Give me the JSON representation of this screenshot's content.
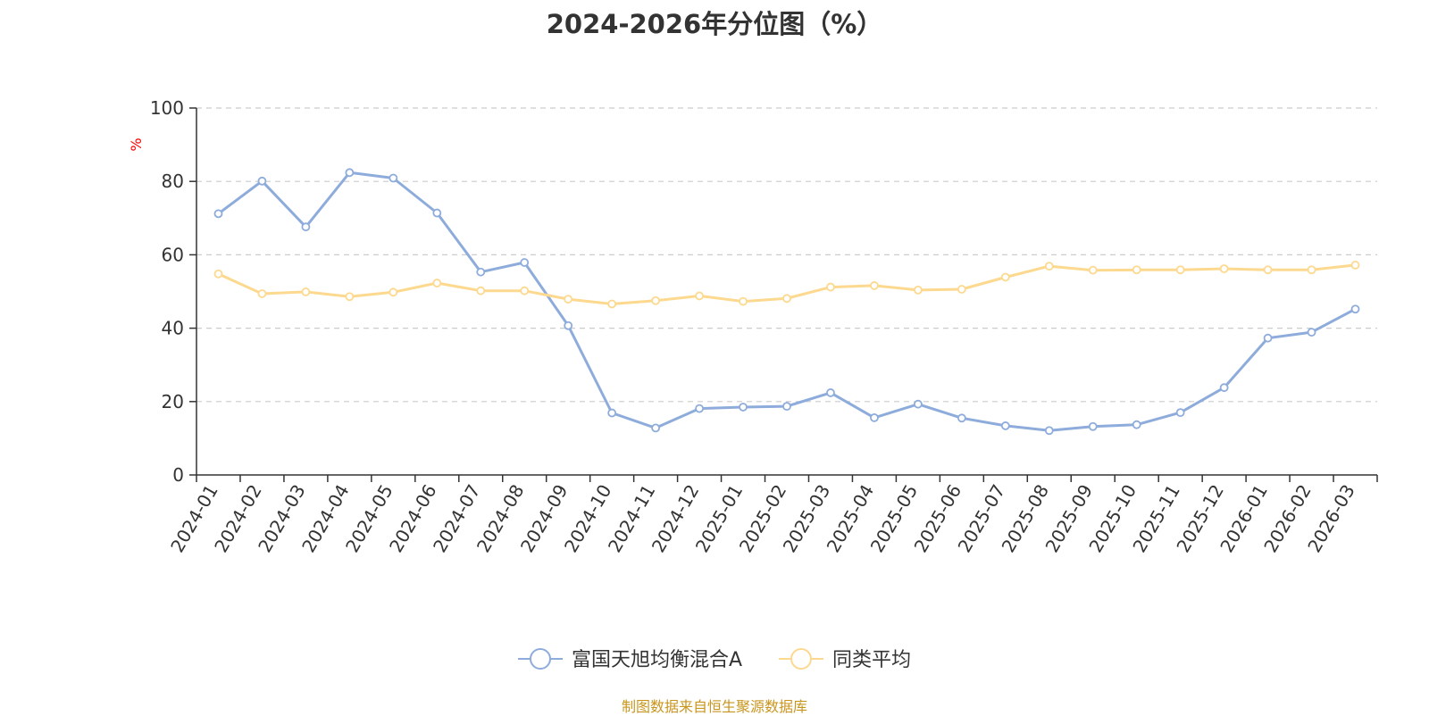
{
  "chart_data": {
    "type": "line",
    "title": "2024-2026年分位图（%）",
    "ylabel": "%",
    "ylim": [
      0,
      100
    ],
    "yticks": [
      0,
      20,
      40,
      60,
      80,
      100
    ],
    "grid": true,
    "legend_position": "bottom",
    "categories": [
      "2024-01",
      "2024-02",
      "2024-03",
      "2024-04",
      "2024-05",
      "2024-06",
      "2024-07",
      "2024-08",
      "2024-09",
      "2024-10",
      "2024-11",
      "2024-12",
      "2025-01",
      "2025-02",
      "2025-03",
      "2025-04",
      "2025-05",
      "2025-06",
      "2025-07",
      "2025-08",
      "2025-09",
      "2025-10",
      "2025-11",
      "2025-12",
      "2026-01",
      "2026-02",
      "2026-03"
    ],
    "series": [
      {
        "name": "富国天旭均衡混合A",
        "color": "#8eacdb",
        "values": [
          71.2,
          80.1,
          67.6,
          82.4,
          80.9,
          71.4,
          55.3,
          57.9,
          40.7,
          16.9,
          12.8,
          18.1,
          18.5,
          18.7,
          22.4,
          15.6,
          19.3,
          15.5,
          13.4,
          12.1,
          13.2,
          13.7,
          17.0,
          23.8,
          37.3,
          38.9,
          45.2
        ]
      },
      {
        "name": "同类平均",
        "color": "#fcd98f",
        "values": [
          54.8,
          49.4,
          49.9,
          48.6,
          49.8,
          52.3,
          50.2,
          50.2,
          47.9,
          46.6,
          47.5,
          48.8,
          47.3,
          48.1,
          51.2,
          51.6,
          50.4,
          50.6,
          53.9,
          56.9,
          55.8,
          55.9,
          55.9,
          56.2,
          55.9,
          55.9,
          57.2
        ]
      }
    ]
  },
  "source_text": "制图数据来自恒生聚源数据库",
  "colors": {
    "title": "#333333",
    "axis": "#333333",
    "grid": "#cccccc",
    "ylabel": "#ff0000",
    "source": "#c8961e"
  }
}
